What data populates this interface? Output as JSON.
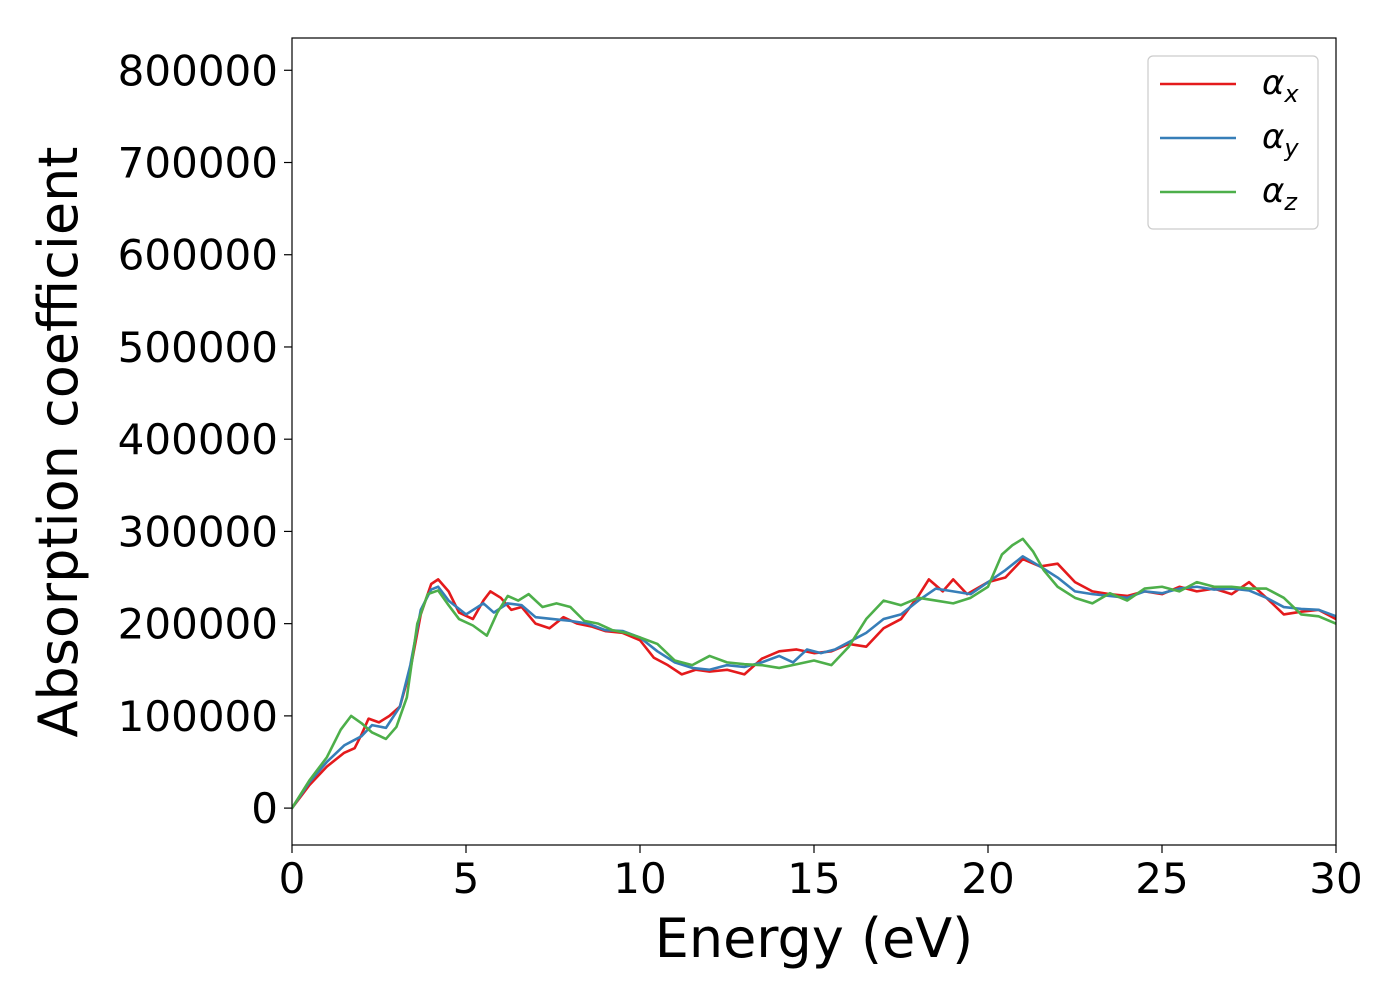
{
  "chart_data": {
    "type": "line",
    "title": "",
    "xlabel": "Energy (eV)",
    "ylabel": "Absorption coefficient",
    "xlim": [
      0,
      30
    ],
    "ylim": [
      -40000,
      835000
    ],
    "xticks": [
      0,
      5,
      10,
      15,
      20,
      25,
      30
    ],
    "yticks": [
      0,
      100000,
      200000,
      300000,
      400000,
      500000,
      600000,
      700000,
      800000
    ],
    "xtick_labels": [
      "0",
      "5",
      "10",
      "15",
      "20",
      "25",
      "30"
    ],
    "ytick_labels": [
      "0",
      "100000",
      "200000",
      "300000",
      "400000",
      "500000",
      "600000",
      "700000",
      "800000"
    ],
    "grid": false,
    "legend_position": "top-right",
    "series": [
      {
        "name": "α_x",
        "legend_main": "α",
        "legend_sub": "x",
        "color": "#e41a1c",
        "points": [
          [
            0,
            0
          ],
          [
            0.5,
            25000
          ],
          [
            1,
            45000
          ],
          [
            1.5,
            60000
          ],
          [
            1.8,
            65000
          ],
          [
            2,
            80000
          ],
          [
            2.2,
            97000
          ],
          [
            2.5,
            93000
          ],
          [
            2.8,
            100000
          ],
          [
            3.1,
            110000
          ],
          [
            3.4,
            150000
          ],
          [
            3.7,
            210000
          ],
          [
            4,
            243000
          ],
          [
            4.2,
            248000
          ],
          [
            4.5,
            235000
          ],
          [
            4.8,
            212000
          ],
          [
            5.2,
            205000
          ],
          [
            5.5,
            225000
          ],
          [
            5.7,
            235000
          ],
          [
            6,
            228000
          ],
          [
            6.3,
            215000
          ],
          [
            6.6,
            218000
          ],
          [
            7,
            200000
          ],
          [
            7.4,
            195000
          ],
          [
            7.8,
            207000
          ],
          [
            8.2,
            200000
          ],
          [
            8.6,
            197000
          ],
          [
            9,
            192000
          ],
          [
            9.5,
            190000
          ],
          [
            10,
            182000
          ],
          [
            10.4,
            163000
          ],
          [
            10.8,
            155000
          ],
          [
            11.2,
            145000
          ],
          [
            11.6,
            150000
          ],
          [
            12,
            148000
          ],
          [
            12.5,
            150000
          ],
          [
            13,
            145000
          ],
          [
            13.5,
            162000
          ],
          [
            14,
            170000
          ],
          [
            14.5,
            172000
          ],
          [
            15,
            168000
          ],
          [
            15.5,
            170000
          ],
          [
            16,
            178000
          ],
          [
            16.5,
            175000
          ],
          [
            17,
            195000
          ],
          [
            17.5,
            205000
          ],
          [
            18,
            230000
          ],
          [
            18.3,
            248000
          ],
          [
            18.7,
            235000
          ],
          [
            19,
            248000
          ],
          [
            19.4,
            232000
          ],
          [
            20,
            245000
          ],
          [
            20.5,
            250000
          ],
          [
            21,
            270000
          ],
          [
            21.5,
            262000
          ],
          [
            22,
            265000
          ],
          [
            22.5,
            245000
          ],
          [
            23,
            235000
          ],
          [
            23.5,
            232000
          ],
          [
            24,
            230000
          ],
          [
            24.5,
            235000
          ],
          [
            25,
            232000
          ],
          [
            25.5,
            240000
          ],
          [
            26,
            235000
          ],
          [
            26.5,
            238000
          ],
          [
            27,
            232000
          ],
          [
            27.5,
            245000
          ],
          [
            28,
            228000
          ],
          [
            28.5,
            210000
          ],
          [
            29,
            213000
          ],
          [
            29.5,
            215000
          ],
          [
            30,
            205000
          ]
        ]
      },
      {
        "name": "α_y",
        "legend_main": "α",
        "legend_sub": "y",
        "color": "#377eb8",
        "points": [
          [
            0,
            0
          ],
          [
            0.5,
            28000
          ],
          [
            1,
            50000
          ],
          [
            1.5,
            68000
          ],
          [
            2,
            78000
          ],
          [
            2.3,
            90000
          ],
          [
            2.7,
            87000
          ],
          [
            3.1,
            110000
          ],
          [
            3.4,
            155000
          ],
          [
            3.7,
            215000
          ],
          [
            4,
            237000
          ],
          [
            4.2,
            240000
          ],
          [
            4.5,
            225000
          ],
          [
            5,
            210000
          ],
          [
            5.5,
            222000
          ],
          [
            5.8,
            212000
          ],
          [
            6.2,
            222000
          ],
          [
            6.6,
            220000
          ],
          [
            7,
            207000
          ],
          [
            7.5,
            205000
          ],
          [
            8,
            203000
          ],
          [
            8.5,
            200000
          ],
          [
            9,
            193000
          ],
          [
            9.5,
            192000
          ],
          [
            10,
            185000
          ],
          [
            10.5,
            170000
          ],
          [
            11,
            158000
          ],
          [
            11.5,
            152000
          ],
          [
            12,
            150000
          ],
          [
            12.5,
            155000
          ],
          [
            13,
            153000
          ],
          [
            13.5,
            158000
          ],
          [
            14,
            165000
          ],
          [
            14.4,
            158000
          ],
          [
            14.8,
            172000
          ],
          [
            15.2,
            168000
          ],
          [
            15.6,
            172000
          ],
          [
            16,
            180000
          ],
          [
            16.5,
            190000
          ],
          [
            17,
            205000
          ],
          [
            17.5,
            210000
          ],
          [
            18,
            225000
          ],
          [
            18.5,
            238000
          ],
          [
            19,
            235000
          ],
          [
            19.5,
            232000
          ],
          [
            20,
            245000
          ],
          [
            20.5,
            258000
          ],
          [
            21,
            273000
          ],
          [
            21.5,
            262000
          ],
          [
            22,
            250000
          ],
          [
            22.5,
            235000
          ],
          [
            23,
            232000
          ],
          [
            23.5,
            230000
          ],
          [
            24,
            228000
          ],
          [
            24.5,
            235000
          ],
          [
            25,
            233000
          ],
          [
            25.5,
            238000
          ],
          [
            26,
            240000
          ],
          [
            26.5,
            237000
          ],
          [
            27,
            238000
          ],
          [
            27.5,
            236000
          ],
          [
            28,
            228000
          ],
          [
            28.5,
            218000
          ],
          [
            29,
            216000
          ],
          [
            29.5,
            215000
          ],
          [
            30,
            208000
          ]
        ]
      },
      {
        "name": "α_z",
        "legend_main": "α",
        "legend_sub": "z",
        "color": "#4daf4a",
        "points": [
          [
            0,
            0
          ],
          [
            0.5,
            30000
          ],
          [
            1,
            55000
          ],
          [
            1.4,
            85000
          ],
          [
            1.7,
            100000
          ],
          [
            2,
            92000
          ],
          [
            2.3,
            82000
          ],
          [
            2.7,
            75000
          ],
          [
            3,
            88000
          ],
          [
            3.3,
            120000
          ],
          [
            3.6,
            200000
          ],
          [
            3.9,
            232000
          ],
          [
            4.2,
            236000
          ],
          [
            4.5,
            220000
          ],
          [
            4.8,
            205000
          ],
          [
            5.2,
            198000
          ],
          [
            5.6,
            187000
          ],
          [
            5.9,
            212000
          ],
          [
            6.2,
            230000
          ],
          [
            6.5,
            225000
          ],
          [
            6.8,
            232000
          ],
          [
            7.2,
            218000
          ],
          [
            7.6,
            222000
          ],
          [
            8,
            218000
          ],
          [
            8.4,
            203000
          ],
          [
            8.8,
            200000
          ],
          [
            9.2,
            193000
          ],
          [
            9.6,
            190000
          ],
          [
            10,
            185000
          ],
          [
            10.5,
            178000
          ],
          [
            11,
            160000
          ],
          [
            11.5,
            155000
          ],
          [
            12,
            165000
          ],
          [
            12.5,
            158000
          ],
          [
            13,
            156000
          ],
          [
            13.5,
            155000
          ],
          [
            14,
            152000
          ],
          [
            14.5,
            156000
          ],
          [
            15,
            160000
          ],
          [
            15.5,
            155000
          ],
          [
            16,
            175000
          ],
          [
            16.5,
            205000
          ],
          [
            17,
            225000
          ],
          [
            17.5,
            220000
          ],
          [
            18,
            228000
          ],
          [
            18.5,
            225000
          ],
          [
            19,
            222000
          ],
          [
            19.5,
            228000
          ],
          [
            20,
            240000
          ],
          [
            20.4,
            275000
          ],
          [
            20.7,
            285000
          ],
          [
            21,
            292000
          ],
          [
            21.3,
            278000
          ],
          [
            21.6,
            258000
          ],
          [
            22,
            240000
          ],
          [
            22.5,
            228000
          ],
          [
            23,
            222000
          ],
          [
            23.5,
            233000
          ],
          [
            24,
            225000
          ],
          [
            24.5,
            238000
          ],
          [
            25,
            240000
          ],
          [
            25.5,
            235000
          ],
          [
            26,
            245000
          ],
          [
            26.5,
            240000
          ],
          [
            27,
            240000
          ],
          [
            27.5,
            238000
          ],
          [
            28,
            238000
          ],
          [
            28.5,
            228000
          ],
          [
            29,
            210000
          ],
          [
            29.5,
            208000
          ],
          [
            30,
            200000
          ]
        ]
      }
    ]
  }
}
